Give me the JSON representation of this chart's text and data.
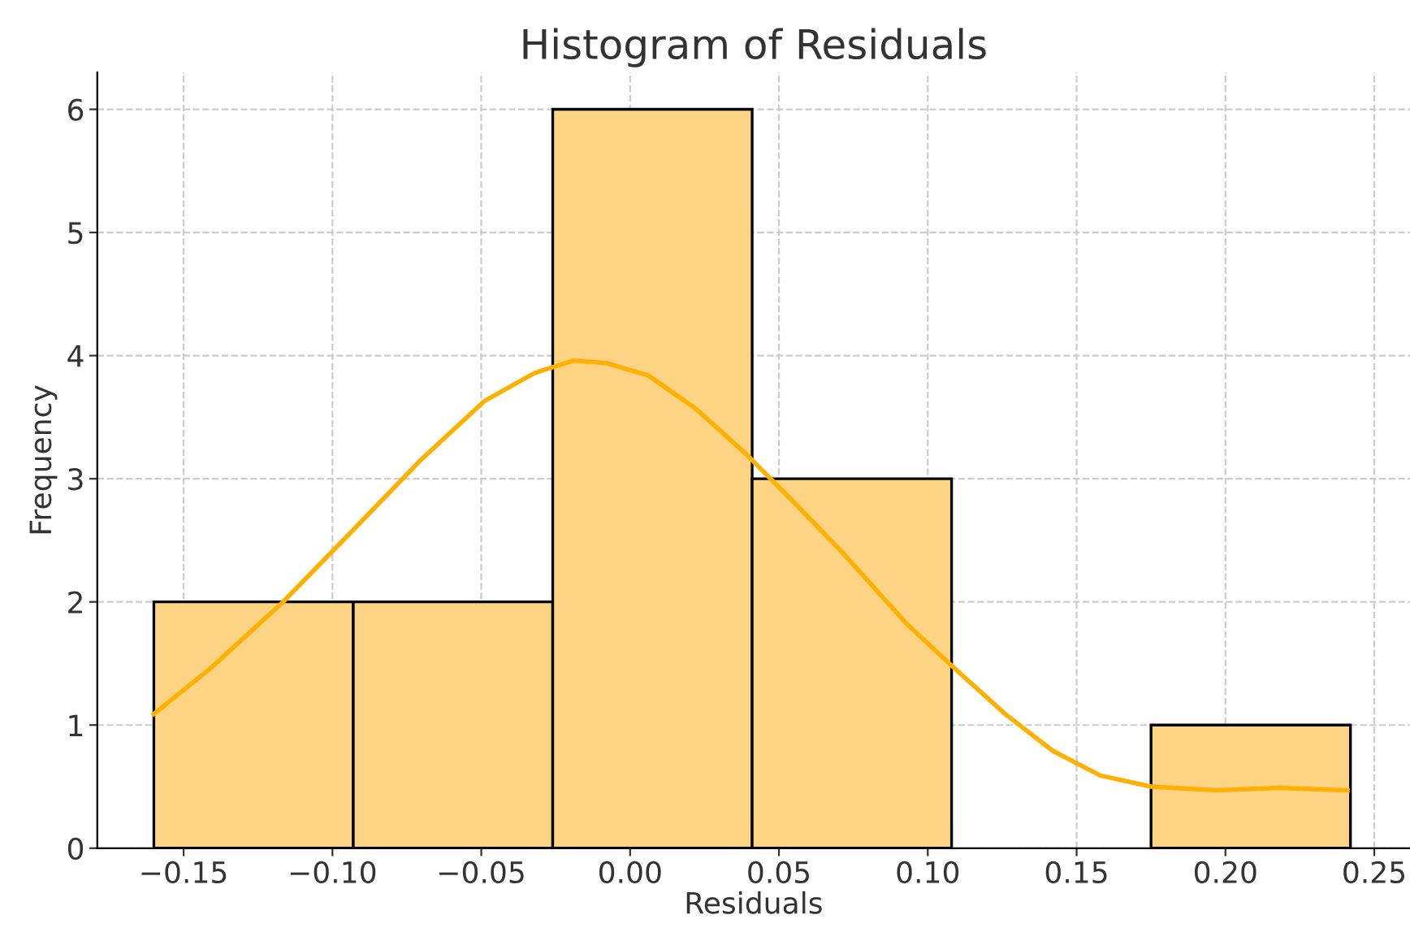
{
  "chart_data": {
    "type": "histogram",
    "title": "Histogram of Residuals",
    "xlabel": "Residuals",
    "ylabel": "Frequency",
    "bins": [
      -0.16,
      -0.093,
      -0.026,
      0.041,
      0.108,
      0.175,
      0.242
    ],
    "values": [
      2,
      2,
      6,
      3,
      0,
      1
    ],
    "color": "#fdd484",
    "series": [
      {
        "type": "line",
        "color": "#ffb000",
        "x": [
          -0.16,
          -0.141,
          -0.117,
          -0.092,
          -0.07,
          -0.049,
          -0.032,
          -0.019,
          -0.008,
          0.006,
          0.022,
          0.039,
          0.055,
          0.071,
          0.093,
          0.109,
          0.126,
          0.142,
          0.158,
          0.175,
          0.197,
          0.218,
          0.241
        ],
        "values": [
          1.09,
          1.46,
          1.99,
          2.61,
          3.16,
          3.63,
          3.86,
          3.96,
          3.94,
          3.84,
          3.57,
          3.2,
          2.81,
          2.41,
          1.82,
          1.46,
          1.09,
          0.79,
          0.59,
          0.5,
          0.47,
          0.49,
          0.47
        ]
      }
    ],
    "xlim": [
      -0.179,
      0.262
    ],
    "xticks": [
      {
        "value": -0.15,
        "label": "−0.15"
      },
      {
        "value": -0.1,
        "label": "−0.10"
      },
      {
        "value": -0.05,
        "label": "−0.05"
      },
      {
        "value": 0,
        "label": "0.00"
      },
      {
        "value": 0.05,
        "label": "0.05"
      },
      {
        "value": 0.1,
        "label": "0.10"
      },
      {
        "value": 0.15,
        "label": "0.15"
      },
      {
        "value": 0.2,
        "label": "0.20"
      },
      {
        "value": 0.25,
        "label": "0.25"
      }
    ],
    "ylim": [
      0,
      6.3
    ],
    "yticks": [
      0,
      1,
      2,
      3,
      4,
      5,
      6
    ],
    "grid": true,
    "line_style": "solid"
  }
}
